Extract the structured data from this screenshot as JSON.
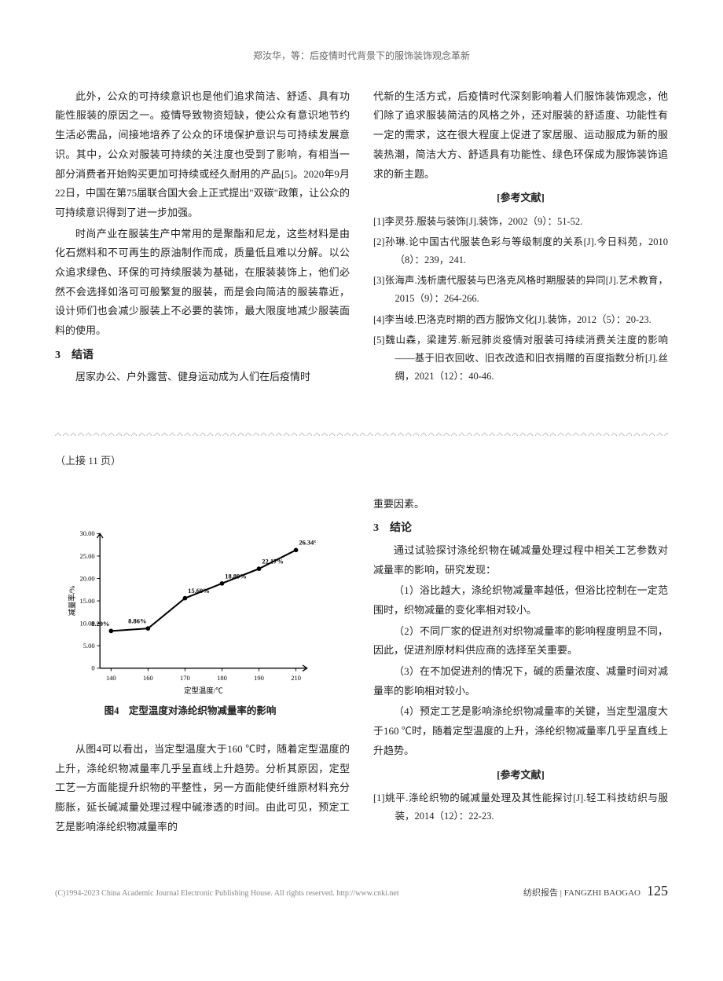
{
  "header": {
    "title": "郑汝华，等：后疫情时代背景下的服饰装饰观念革新"
  },
  "article1": {
    "col1": {
      "p1": "此外，公众的可持续意识也是他们追求简洁、舒适、具有功能性服装的原因之一。疫情导致物资短缺，使公众有意识地节约生活必需品，间接地培养了公众的环境保护意识与可持续发展意识。其中，公众对服装可持续的关注度也受到了影响，有相当一部分消费者开始购买更加可持续或经久耐用的产品[5]。2020年9月22日，中国在第75届联合国大会上正式提出\"双碳\"政策，让公众的可持续意识得到了进一步加强。",
      "p2": "时尚产业在服装生产中常用的是聚酯和尼龙，这些材料是由化石燃料和不可再生的原油制作而成，质量低且难以分解。以公众追求绿色、环保的可持续服装为基础，在服装装饰上，他们必然不会选择如洛可可般繁复的服装，而是会向简洁的服装靠近，设计师们也会减少服装上不必要的装饰，最大限度地减少服装面料的使用。",
      "h3": "3　结语",
      "p3": "居家办公、户外露营、健身运动成为人们在后疫情时"
    },
    "col2": {
      "p1": "代新的生活方式，后疫情时代深刻影响着人们服饰装饰观念，他们除了追求服装简洁的风格之外，还对服装的舒适度、功能性有一定的需求，这在很大程度上促进了家居服、运动服成为新的服装热潮，简洁大方、舒适具有功能性、绿色环保成为服饰装饰追求的新主题。",
      "refs_title": "[参考文献]",
      "refs": [
        "[1]李灵芬.服装与装饰[J].装饰，2002（9）：51-52.",
        "[2]孙琳.论中国古代服装色彩与等级制度的关系[J].今日科苑，2010（8）：239，241.",
        "[3]张海声.浅析唐代服装与巴洛克风格时期服装的异同[J].艺术教育，2015（9）：264-266.",
        "[4]李当岐.巴洛克时期的西方服饰文化[J].装饰，2012（5）：20-23.",
        "[5]魏山森，梁建芳.新冠肺炎疫情对服装可持续消费关注度的影响——基于旧衣回收、旧衣改造和旧衣捐赠的百度指数分析[J].丝绸，2021（12）：40-46."
      ]
    }
  },
  "continued_label": "（上接 11 页）",
  "chart": {
    "type": "line",
    "x_values": [
      140,
      160,
      170,
      180,
      190,
      210
    ],
    "y_values": [
      8.29,
      8.86,
      15.6,
      18.89,
      22.17,
      26.34
    ],
    "point_labels": [
      "8.29%",
      "8.86%",
      "15.60%",
      "18.89%",
      "22.17%",
      "26.34%"
    ],
    "x_label": "定型温度/℃",
    "y_label": "减量率/%",
    "y_ticks": [
      0,
      5.0,
      10.0,
      15.0,
      20.0,
      25.0,
      30.0
    ],
    "y_tick_labels": [
      "0",
      "5.00",
      "10.00",
      "15.00",
      "20.00",
      "25.00",
      "30.00"
    ],
    "x_tick_labels": [
      "140",
      "160",
      "170",
      "180",
      "190",
      "210"
    ],
    "line_color": "#000000",
    "line_width": 2.2,
    "marker_color": "#000000",
    "marker_size": 3,
    "axis_color": "#000000",
    "background_color": "#ffffff",
    "label_fontsize": 10,
    "tick_fontsize": 9,
    "caption": "图4　定型温度对涤纶织物减量率的影响"
  },
  "article2": {
    "col1": {
      "p1": "从图4可以看出，当定型温度大于160 ℃时，随着定型温度的上升，涤纶织物减量率几乎呈直线上升趋势。分析其原因，定型工艺一方面能提升织物的平整性，另一方面能使纤维原材料充分膨胀，延长碱减量处理过程中碱渗透的时间。由此可见，预定工艺是影响涤纶织物减量率的"
    },
    "col2": {
      "p0": "重要因素。",
      "h3": "3　结论",
      "p1": "通过试验探讨涤纶织物在碱减量处理过程中相关工艺参数对减量率的影响，研究发现：",
      "p2": "（1）浴比越大，涤纶织物减量率越低，但浴比控制在一定范围时，织物减量的变化率相对较小。",
      "p3": "（2）不同厂家的促进剂对织物减量率的影响程度明显不同，因此，促进剂原材料供应商的选择至关重要。",
      "p4": "（3）在不加促进剂的情况下，碱的质量浓度、减量时间对减量率的影响相对较小。",
      "p5": "（4）预定工艺是影响涤纶织物减量率的关键，当定型温度大于160 ℃时，随着定型温度的上升，涤纶织物减量率几乎呈直线上升趋势。",
      "refs_title": "[参考文献]",
      "refs": [
        "[1]姚平.涤纶织物的碱减量处理及其性能探讨[J].轻工科技纺织与服装，2014（12）：22-23."
      ]
    }
  },
  "footer": {
    "copyright": "(C)1994-2023 China Academic Journal Electronic Publishing House. All rights reserved.    http://www.cnki.net",
    "magazine": "纺织报告 | FANGZHI BAOGAO",
    "page": "125"
  }
}
